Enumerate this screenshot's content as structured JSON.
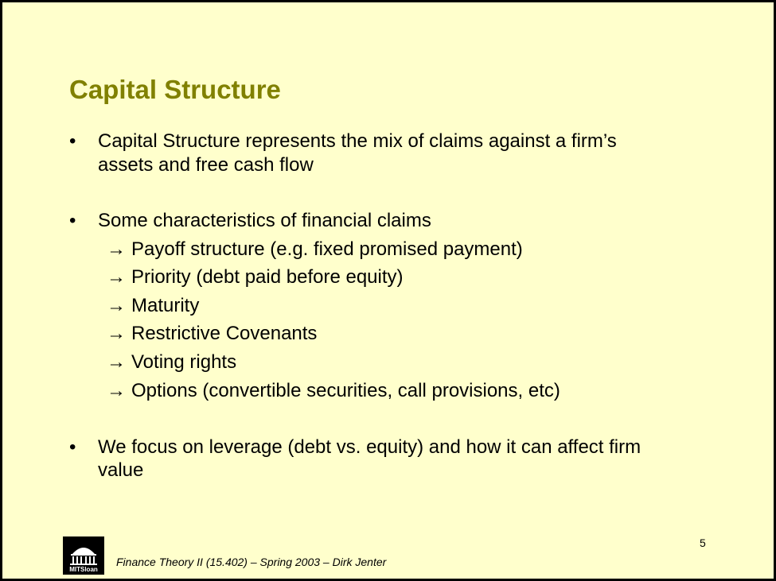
{
  "slide": {
    "title": "Capital Structure",
    "bullets": [
      {
        "marker": "•",
        "line1": "Capital Structure represents the mix of claims against a firm’s",
        "line2": "assets and free cash flow"
      },
      {
        "marker": "•",
        "line1": "Some characteristics of financial claims"
      },
      {
        "marker": "•",
        "line1": "We focus on leverage (debt vs. equity) and how it can affect firm",
        "line2": "value"
      }
    ],
    "arrow_symbol": "→",
    "sub_items": [
      "Payoff structure (e.g. fixed promised payment)",
      "Priority (debt paid before equity)",
      "Maturity",
      "Restrictive Covenants",
      "Voting rights",
      "Options (convertible securities, call provisions, etc)"
    ],
    "page_number": "5",
    "footer": "Finance Theory II (15.402) – Spring 2003 – Dirk Jenter",
    "logo_text": "MITSloan"
  },
  "colors": {
    "background": "#ffffcc",
    "title": "#808000",
    "border": "#000000"
  }
}
